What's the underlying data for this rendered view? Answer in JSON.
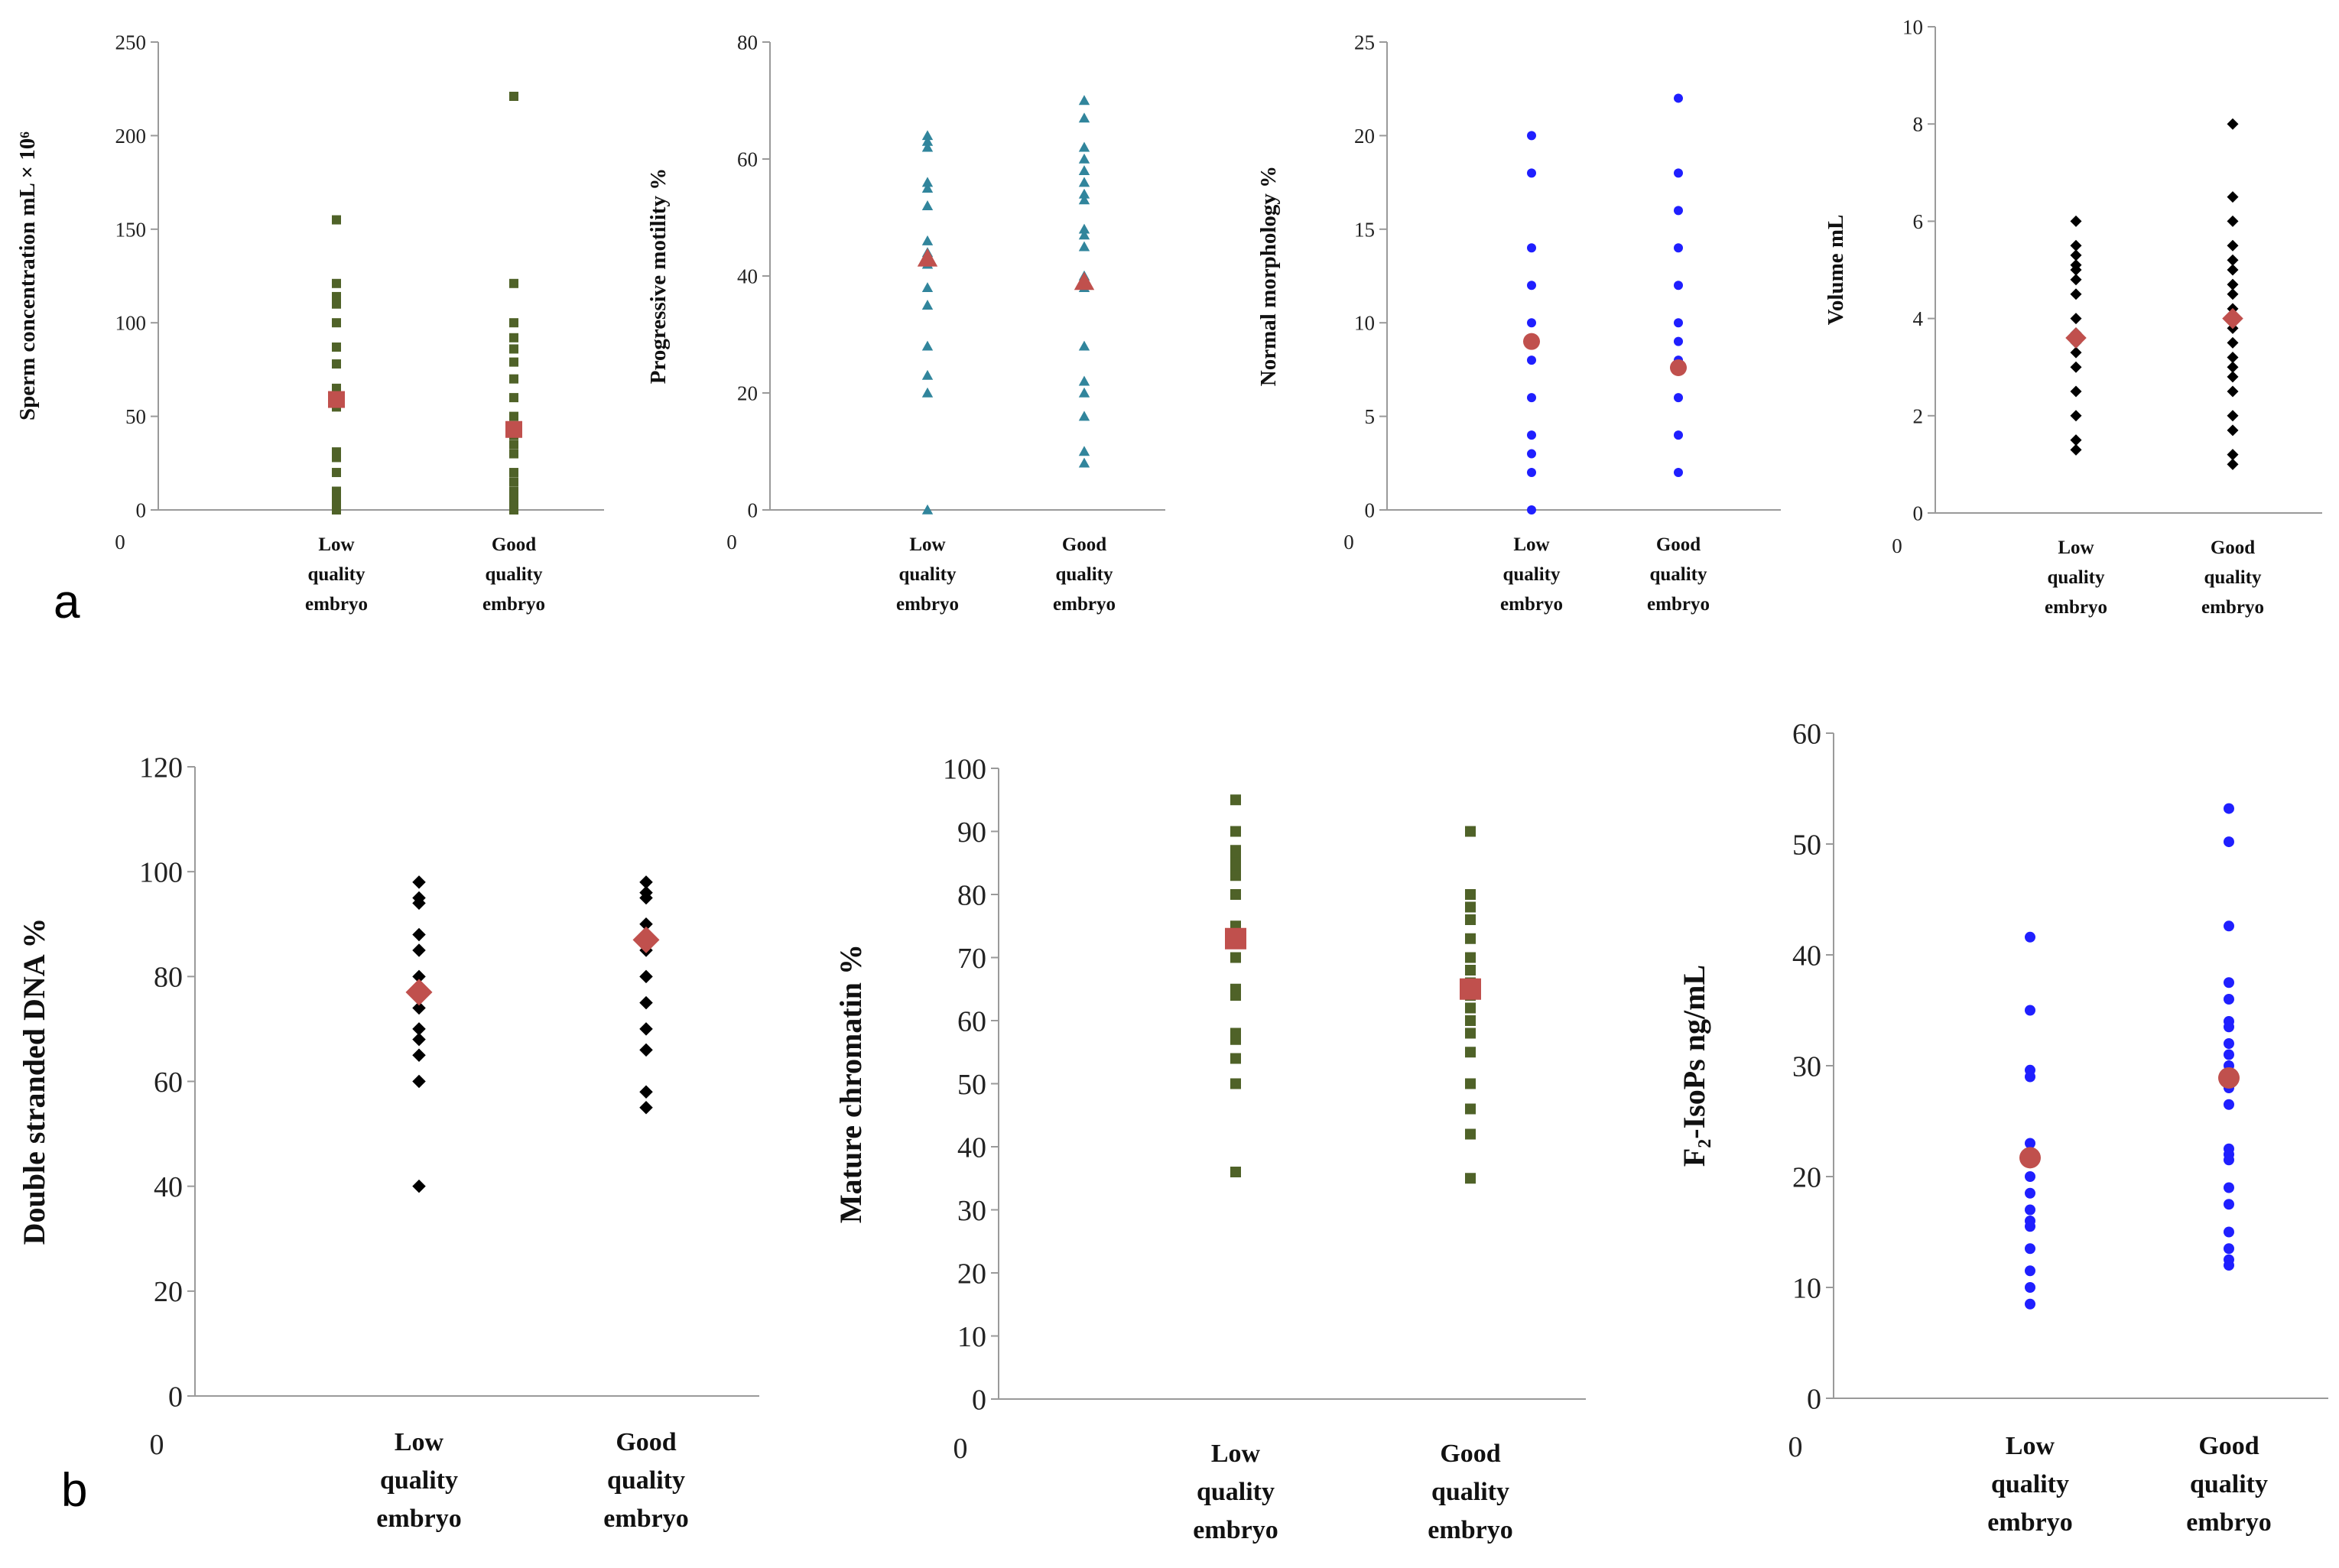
{
  "panel_labels": [
    "a",
    "b"
  ],
  "category_words": {
    "low": [
      "Low",
      "quality",
      "embryo"
    ],
    "good": [
      "Good",
      "quality",
      "embryo"
    ]
  },
  "chart_data": [
    {
      "type": "scatter",
      "id": "sperm-concentration",
      "panel": "a",
      "ylabel": "Sperm concentration mL × 10⁶",
      "xlabel": "",
      "ylim": [
        0,
        250
      ],
      "yticks": [
        0,
        50,
        100,
        150,
        200,
        250
      ],
      "x_origin_label": "0",
      "categories": [
        "Low quality embryo",
        "Good quality embryo"
      ],
      "marker": "square",
      "color": "#4f6228",
      "series": [
        {
          "name": "Low quality embryo",
          "values": [
            155,
            121,
            114,
            110,
            100,
            87,
            78,
            65,
            55,
            31,
            28,
            20,
            10,
            8,
            6,
            4,
            2,
            0
          ]
        },
        {
          "name": "Good quality embryo",
          "values": [
            221,
            121,
            100,
            92,
            86,
            79,
            70,
            60,
            50,
            45,
            40,
            35,
            30,
            20,
            15,
            10,
            8,
            5,
            2,
            0
          ]
        }
      ],
      "means": [
        59,
        43
      ],
      "mean_marker": "square",
      "mean_color": "#c0504d"
    },
    {
      "type": "scatter",
      "id": "progressive-motility",
      "panel": "a",
      "ylabel": "Progressive motility %",
      "xlabel": "",
      "ylim": [
        0,
        80
      ],
      "yticks": [
        0,
        20,
        40,
        60,
        80
      ],
      "x_origin_label": "0",
      "categories": [
        "Low quality embryo",
        "Good quality embryo"
      ],
      "marker": "triangle",
      "color": "#31859c",
      "series": [
        {
          "name": "Low quality embryo",
          "values": [
            64,
            63,
            62,
            56,
            55,
            52,
            46,
            44,
            42,
            38,
            35,
            28,
            23,
            20,
            0
          ]
        },
        {
          "name": "Good quality embryo",
          "values": [
            70,
            67,
            62,
            60,
            58,
            56,
            54,
            53,
            48,
            47,
            45,
            40,
            38,
            28,
            22,
            20,
            16,
            10,
            8
          ]
        }
      ],
      "means": [
        43,
        39
      ],
      "mean_marker": "triangle",
      "mean_color": "#c0504d"
    },
    {
      "type": "scatter",
      "id": "normal-morphology",
      "panel": "a",
      "ylabel": "Normal morphology %",
      "xlabel": "",
      "ylim": [
        0,
        25
      ],
      "yticks": [
        0,
        5,
        10,
        15,
        20,
        25
      ],
      "x_origin_label": "0",
      "categories": [
        "Low quality embryo",
        "Good quality embryo"
      ],
      "marker": "circle",
      "color": "#1f1fff",
      "series": [
        {
          "name": "Low quality embryo",
          "values": [
            20,
            18,
            14,
            12,
            10,
            9,
            8,
            6,
            4,
            3,
            2,
            0
          ]
        },
        {
          "name": "Good quality embryo",
          "values": [
            22,
            18,
            16,
            14,
            12,
            10,
            9,
            8,
            6,
            4,
            2
          ]
        }
      ],
      "means": [
        9,
        7.6
      ],
      "mean_marker": "circle",
      "mean_color": "#c0504d"
    },
    {
      "type": "scatter",
      "id": "volume",
      "panel": "a",
      "ylabel": "Volume mL",
      "xlabel": "",
      "ylim": [
        0,
        10
      ],
      "yticks": [
        0,
        2,
        4,
        6,
        8,
        10
      ],
      "x_origin_label": "0",
      "categories": [
        "Low quality embryo",
        "Good quality embryo"
      ],
      "marker": "diamond",
      "color": "#000000",
      "series": [
        {
          "name": "Low quality embryo",
          "values": [
            6,
            5.5,
            5.3,
            5.1,
            5,
            4.8,
            4.5,
            4,
            3.7,
            3.5,
            3.3,
            3,
            2.5,
            2,
            1.5,
            1.3
          ]
        },
        {
          "name": "Good quality embryo",
          "values": [
            8,
            6.5,
            6,
            5.5,
            5.2,
            5,
            4.7,
            4.5,
            4.2,
            4,
            3.8,
            3.5,
            3.2,
            3,
            2.8,
            2.5,
            2,
            1.7,
            1.2,
            1
          ]
        }
      ],
      "means": [
        3.6,
        4
      ],
      "mean_marker": "diamond",
      "mean_color": "#c0504d"
    },
    {
      "type": "scatter",
      "id": "double-stranded-dna",
      "panel": "b",
      "ylabel": "Double stranded DNA %",
      "xlabel": "",
      "ylim": [
        0,
        120
      ],
      "yticks": [
        0,
        20,
        40,
        60,
        80,
        100,
        120
      ],
      "x_origin_label": "0",
      "categories": [
        "Low quality embryo",
        "Good quality embryo"
      ],
      "marker": "diamond",
      "color": "#000000",
      "series": [
        {
          "name": "Low quality embryo",
          "values": [
            98,
            95,
            94,
            88,
            85,
            80,
            78,
            76,
            74,
            70,
            68,
            65,
            60,
            40
          ]
        },
        {
          "name": "Good quality embryo",
          "values": [
            98,
            96,
            95,
            90,
            85,
            80,
            75,
            70,
            66,
            58,
            55
          ]
        }
      ],
      "means": [
        77,
        87
      ],
      "mean_marker": "diamond",
      "mean_color": "#c0504d"
    },
    {
      "type": "scatter",
      "id": "mature-chromatin",
      "panel": "b",
      "ylabel": "Mature chromatin %",
      "xlabel": "",
      "ylim": [
        0,
        100
      ],
      "yticks": [
        0,
        10,
        20,
        30,
        40,
        50,
        60,
        70,
        80,
        90,
        100
      ],
      "x_origin_label": "0",
      "categories": [
        "Low quality embryo",
        "Good quality embryo"
      ],
      "marker": "square",
      "color": "#4f6228",
      "series": [
        {
          "name": "Low quality embryo",
          "values": [
            95,
            90,
            87,
            86,
            85,
            84,
            83,
            80,
            75,
            70,
            65,
            64,
            58,
            57,
            54,
            50,
            36
          ]
        },
        {
          "name": "Good quality embryo",
          "values": [
            90,
            80,
            78,
            76,
            73,
            70,
            68,
            66,
            64,
            62,
            60,
            58,
            55,
            50,
            46,
            42,
            35
          ]
        }
      ],
      "means": [
        73,
        65
      ],
      "mean_marker": "square",
      "mean_color": "#c0504d"
    },
    {
      "type": "scatter",
      "id": "f2-isoprostanes",
      "panel": "b",
      "ylabel": "F₂-IsoPs ng/mL",
      "xlabel": "",
      "ylim": [
        0,
        60
      ],
      "yticks": [
        0,
        10,
        20,
        30,
        40,
        50,
        60
      ],
      "x_origin_label": "0",
      "categories": [
        "Low quality embryo",
        "Good quality embryo"
      ],
      "marker": "circle",
      "color": "#1f1fff",
      "series": [
        {
          "name": "Low quality embryo",
          "values": [
            41.6,
            35,
            29.6,
            29,
            23,
            22,
            21.5,
            20,
            18.5,
            17,
            16,
            15.5,
            13.5,
            11.5,
            10,
            8.5
          ]
        },
        {
          "name": "Good quality embryo",
          "values": [
            53.2,
            50.2,
            42.6,
            37.5,
            36,
            34,
            33.5,
            32,
            31,
            30,
            29,
            28,
            26.5,
            22.5,
            22,
            21.5,
            19,
            17.5,
            15,
            13.5,
            12.5,
            12
          ]
        }
      ],
      "means": [
        21.7,
        28.9
      ],
      "mean_marker": "circle",
      "mean_color": "#c0504d"
    }
  ]
}
